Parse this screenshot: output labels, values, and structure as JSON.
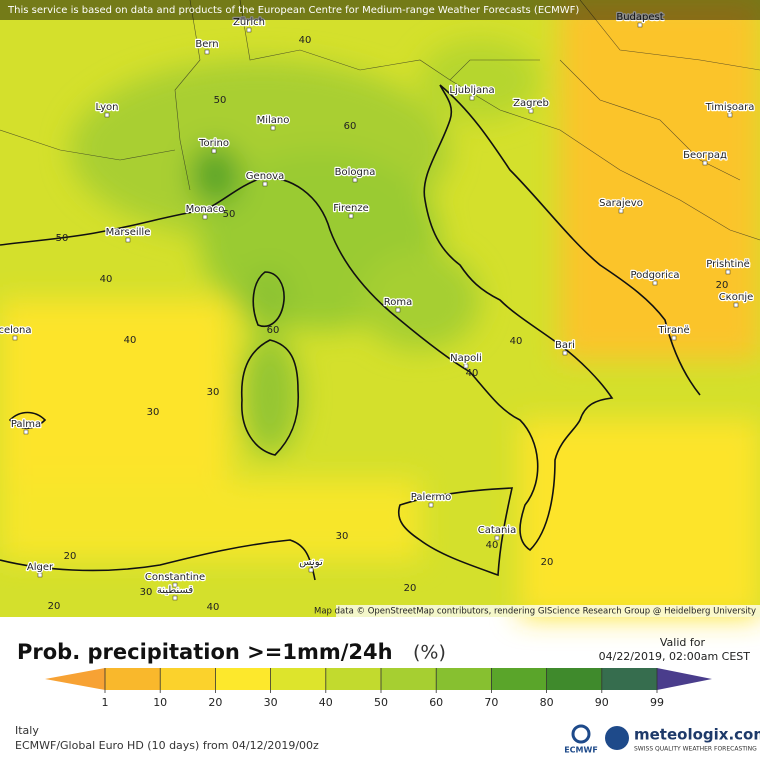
{
  "header": {
    "notice": "This service is based on data and products of the European Centre for Medium-range Weather Forecasts (ECMWF)"
  },
  "map": {
    "cities": [
      "Zürich",
      "Budapest",
      "Bern",
      "Lyon",
      "Milano",
      "Ljubljana",
      "Zagreb",
      "Timişoara",
      "Torino",
      "Bologna",
      "Београд",
      "Genova",
      "Monaco",
      "Marseille",
      "Firenze",
      "Sarajevo",
      "Podgorica",
      "Prishtinë",
      "Скопје",
      "Roma",
      "Tiranë",
      "celona",
      "Bari",
      "Napoli",
      "Palma",
      "Palermo",
      "Catania",
      "Alger",
      "Constantine",
      "قسنطينة",
      "تونس"
    ],
    "contour_labels": [
      40,
      50,
      60,
      50,
      50,
      40,
      40,
      60,
      30,
      30,
      40,
      40,
      20,
      40,
      30,
      20,
      20,
      20,
      30,
      40,
      20
    ],
    "attribution": "Map data © OpenStreetMap contributors, rendering GIScience Research Group @ Heidelberg University"
  },
  "legend": {
    "title": "Prob. precipitation >=1mm/24h",
    "unit": "(%)",
    "ticks": [
      1,
      10,
      20,
      30,
      40,
      50,
      60,
      70,
      80,
      90,
      99
    ],
    "colors": [
      "#f7a234",
      "#f9b82c",
      "#fbd22c",
      "#fde82c",
      "#dde42c",
      "#c2da2e",
      "#a6cf31",
      "#87c030",
      "#5aa52a",
      "#3f8a2c",
      "#366d4e",
      "#4a3d8c"
    ]
  },
  "valid": {
    "label": "Valid for",
    "time": "04/22/2019, 02:00am CEST"
  },
  "footer": {
    "region": "Italy",
    "model": "ECMWF/Global Euro HD (10 days) from 04/12/2019/00z",
    "ecmwf": "ECMWF",
    "brand": "meteologix.com",
    "tagline": "SWISS QUALITY WEATHER FORECASTING"
  }
}
